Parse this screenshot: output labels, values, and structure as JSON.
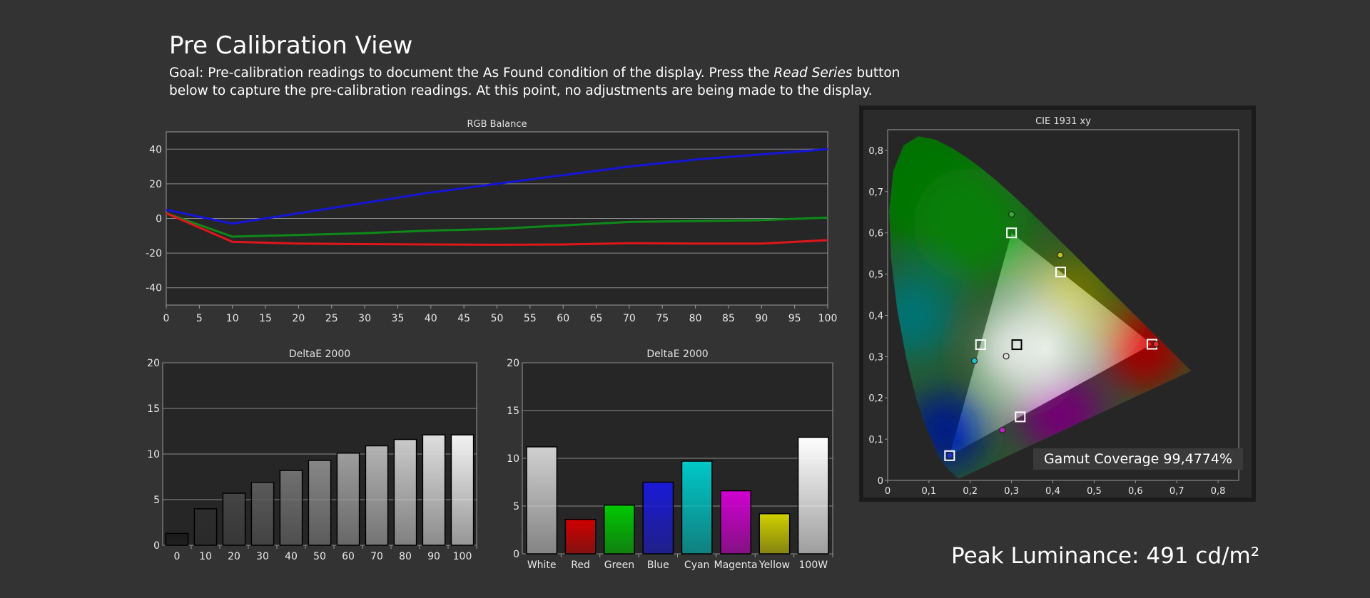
{
  "header": {
    "title": "Pre Calibration View",
    "goal_pre": "Goal: Pre-calibration readings to document the As Found condition of the display. Press the ",
    "goal_em": "Read Series",
    "goal_post": " button below to capture the pre-calibration readings. At this point, no adjustments are being made to the display."
  },
  "summary": {
    "gamut_coverage": "Gamut Coverage 99,4774%",
    "peak_luminance": "Peak Luminance: 491 cd/m²"
  },
  "colors": {
    "background": "#333333",
    "plot_background": "#262626",
    "red": "#e0161b",
    "green": "#0e8a19",
    "blue": "#1515d8"
  },
  "chart_data": [
    {
      "id": "rgb",
      "type": "line",
      "title": "RGB Balance",
      "xlabel": "",
      "ylabel": "",
      "xlim": [
        0,
        100
      ],
      "ylim": [
        -50,
        50
      ],
      "xticks": [
        "0",
        "5",
        "10",
        "15",
        "20",
        "25",
        "30",
        "35",
        "40",
        "45",
        "50",
        "55",
        "60",
        "65",
        "70",
        "75",
        "80",
        "85",
        "90",
        "95",
        "100"
      ],
      "yticks": [
        "40",
        "20",
        "0",
        "-20",
        "-40"
      ],
      "grid": true,
      "x": [
        0,
        10,
        20,
        30,
        40,
        50,
        60,
        70,
        80,
        90,
        100
      ],
      "series": [
        {
          "color": "#1515d8",
          "values": [
            5,
            -3,
            3,
            9,
            15,
            20,
            25,
            30,
            34,
            37,
            40
          ]
        },
        {
          "color": "#0e8a19",
          "values": [
            3,
            -10.5,
            -9.5,
            -8.5,
            -7,
            -6,
            -4,
            -2,
            -1.5,
            -1,
            0.5
          ]
        },
        {
          "color": "#e0161b",
          "values": [
            3,
            -13.5,
            -14.5,
            -14.8,
            -15,
            -15.2,
            -15,
            -14.3,
            -14.5,
            -14.5,
            -12.5
          ]
        }
      ]
    },
    {
      "id": "grayscale",
      "type": "bar",
      "title": "DeltaE 2000",
      "ylim": [
        0,
        20
      ],
      "yticks": [
        "20",
        "15",
        "10",
        "5",
        "0"
      ],
      "categories": [
        "0",
        "10",
        "20",
        "30",
        "40",
        "50",
        "60",
        "70",
        "80",
        "90",
        "100"
      ],
      "values": [
        1.3,
        4.0,
        5.7,
        6.9,
        8.2,
        9.3,
        10.1,
        10.9,
        11.6,
        12.1,
        12.1
      ],
      "bar_colors": [
        "#1a1a1a",
        "#2d2d2d",
        "#444444",
        "#5a5a5a",
        "#707070",
        "#878787",
        "#9d9d9d",
        "#b3b3b3",
        "#c9c9c9",
        "#dedede",
        "#f2f2f2"
      ]
    },
    {
      "id": "colors",
      "type": "bar",
      "title": "DeltaE 2000",
      "ylim": [
        0,
        20
      ],
      "yticks": [
        "20",
        "15",
        "10",
        "5",
        "0"
      ],
      "categories": [
        "White",
        "Red",
        "Green",
        "Blue",
        "Cyan",
        "Magenta",
        "Yellow",
        "100W"
      ],
      "values": [
        11.2,
        3.6,
        5.1,
        7.5,
        9.7,
        6.6,
        4.2,
        12.2
      ],
      "bar_colors": [
        "#d0d0d0",
        "#d00000",
        "#00c800",
        "#1a1ad8",
        "#00c8c8",
        "#d000d0",
        "#d0d000",
        "#ffffff"
      ]
    },
    {
      "id": "cie",
      "type": "scatter",
      "title": "CIE 1931 xy",
      "xlim": [
        0,
        0.85
      ],
      "ylim": [
        0,
        0.85
      ],
      "xticks": [
        "0",
        "0,1",
        "0,2",
        "0,3",
        "0,4",
        "0,5",
        "0,6",
        "0,7",
        "0,8"
      ],
      "yticks": [
        "0,8",
        "0,7",
        "0,6",
        "0,5",
        "0,4",
        "0,3",
        "0,2",
        "0,1",
        "0"
      ],
      "targets": [
        {
          "label": "Red",
          "x": 0.64,
          "y": 0.33
        },
        {
          "label": "Green",
          "x": 0.3,
          "y": 0.6
        },
        {
          "label": "Blue",
          "x": 0.15,
          "y": 0.06
        },
        {
          "label": "Cyan",
          "x": 0.225,
          "y": 0.329
        },
        {
          "label": "Magenta",
          "x": 0.321,
          "y": 0.154
        },
        {
          "label": "Yellow",
          "x": 0.419,
          "y": 0.505
        },
        {
          "label": "White",
          "x": 0.3127,
          "y": 0.329
        }
      ],
      "measured": [
        {
          "label": "Red",
          "x": 0.65,
          "y": 0.33,
          "color": "#e03030"
        },
        {
          "label": "Green",
          "x": 0.3,
          "y": 0.645,
          "color": "#30b030"
        },
        {
          "label": "Blue",
          "x": 0.15,
          "y": 0.06,
          "color": "#2030e0"
        },
        {
          "label": "Cyan",
          "x": 0.21,
          "y": 0.29,
          "color": "#20c0c0"
        },
        {
          "label": "Magenta",
          "x": 0.278,
          "y": 0.122,
          "color": "#c020c0"
        },
        {
          "label": "Yellow",
          "x": 0.418,
          "y": 0.546,
          "color": "#c0c020"
        },
        {
          "label": "White",
          "x": 0.287,
          "y": 0.301,
          "color": "#e0e0e0"
        }
      ]
    }
  ]
}
